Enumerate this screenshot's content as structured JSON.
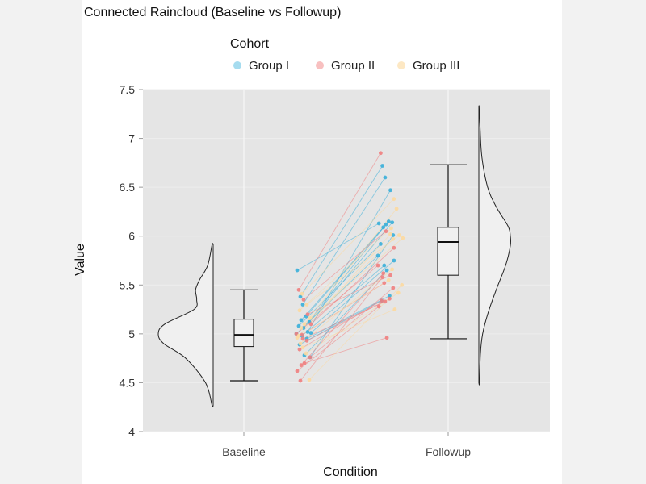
{
  "chart_data": {
    "type": "scatter",
    "title": "Connected Raincloud (Baseline vs Followup)",
    "xlabel": "Condition",
    "ylabel": "Value",
    "categories": [
      "Baseline",
      "Followup"
    ],
    "ylim": [
      4,
      7.5
    ],
    "yticks": [
      "4",
      "4.5",
      "5",
      "5.5",
      "6",
      "6.5",
      "7",
      "7.5"
    ],
    "grid": true,
    "legend": {
      "title": "Cohort",
      "placement": "top-center"
    },
    "series": [
      {
        "name": "Group I",
        "color": "#3aafd9",
        "pairs": [
          [
            5.65,
            6.13
          ],
          [
            5.38,
            6.72
          ],
          [
            5.3,
            6.6
          ],
          [
            5.18,
            6.15
          ],
          [
            5.12,
            6.14
          ],
          [
            5.08,
            5.92
          ],
          [
            5.06,
            6.12
          ],
          [
            5.02,
            6.47
          ],
          [
            5.01,
            5.75
          ],
          [
            5.0,
            5.8
          ],
          [
            4.98,
            5.7
          ],
          [
            4.95,
            5.39
          ],
          [
            4.89,
            5.34
          ],
          [
            4.76,
            6.01
          ],
          [
            4.78,
            5.65
          ],
          [
            5.14,
            6.09
          ]
        ]
      },
      {
        "name": "Group II",
        "color": "#f08080",
        "pairs": [
          [
            5.45,
            6.85
          ],
          [
            5.35,
            6.05
          ],
          [
            5.2,
            5.6
          ],
          [
            5.1,
            5.88
          ],
          [
            5.0,
            5.7
          ],
          [
            4.99,
            5.52
          ],
          [
            4.93,
            5.36
          ],
          [
            4.84,
            5.34
          ],
          [
            4.76,
            5.47
          ],
          [
            4.7,
            4.96
          ],
          [
            4.68,
            5.62
          ],
          [
            4.62,
            5.28
          ],
          [
            4.52,
            5.58
          ],
          [
            4.95,
            5.33
          ]
        ]
      },
      {
        "name": "Group III",
        "color": "#fcd9a0",
        "pairs": [
          [
            5.41,
            6.38
          ],
          [
            5.3,
            6.01
          ],
          [
            5.24,
            6.08
          ],
          [
            5.16,
            5.98
          ],
          [
            5.1,
            6.28
          ],
          [
            5.06,
            5.97
          ],
          [
            4.96,
            5.55
          ],
          [
            4.9,
            5.66
          ],
          [
            4.86,
            5.25
          ],
          [
            4.8,
            5.42
          ],
          [
            4.53,
            5.5
          ],
          [
            4.98,
            6.02
          ]
        ]
      }
    ],
    "boxplots": [
      {
        "category": "Baseline",
        "min": 4.52,
        "q1": 4.87,
        "median": 4.99,
        "q3": 5.15,
        "max": 5.45
      },
      {
        "category": "Followup",
        "min": 4.95,
        "q1": 5.6,
        "median": 5.94,
        "q3": 6.09,
        "max": 6.73
      }
    ],
    "densities": [
      {
        "category": "Baseline",
        "range": [
          4.27,
          5.91
        ],
        "side": "left",
        "y": [
          4.27,
          4.5,
          4.75,
          4.9,
          5.0,
          5.1,
          5.25,
          5.35,
          5.45,
          5.55,
          5.7,
          5.91
        ],
        "density": [
          0.02,
          0.14,
          0.5,
          0.9,
          1.0,
          0.88,
          0.35,
          0.3,
          0.32,
          0.25,
          0.1,
          0.02
        ]
      },
      {
        "category": "Followup",
        "range": [
          4.5,
          7.32
        ],
        "side": "right",
        "y": [
          4.5,
          4.8,
          5.0,
          5.2,
          5.45,
          5.7,
          5.9,
          6.0,
          6.1,
          6.3,
          6.5,
          6.8,
          7.1,
          7.32
        ],
        "density": [
          0.02,
          0.05,
          0.12,
          0.28,
          0.55,
          0.85,
          1.0,
          1.0,
          0.93,
          0.55,
          0.28,
          0.1,
          0.04,
          0.01
        ]
      }
    ]
  }
}
